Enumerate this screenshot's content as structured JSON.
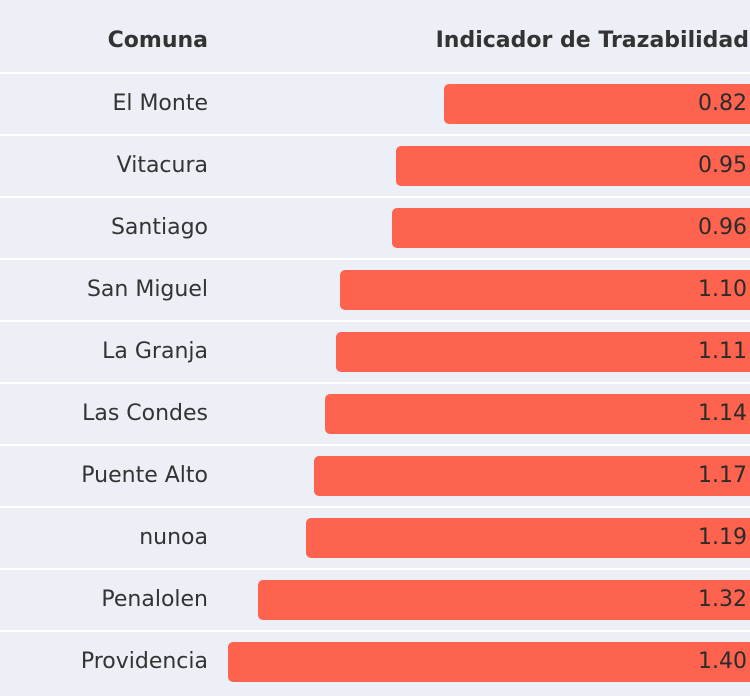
{
  "table": {
    "col_comuna": "Comuna",
    "col_indicator": "Indicador de Trazabilidad"
  },
  "colors": {
    "bar": "#fd634f",
    "background": "#eceff5",
    "row_divider": "#ffffff"
  },
  "chart_data": {
    "type": "bar",
    "orientation": "horizontal",
    "categories": [
      "El Monte",
      "Vitacura",
      "Santiago",
      "San Miguel",
      "La Granja",
      "Las Condes",
      "Puente Alto",
      "nunoa",
      "Penalolen",
      "Providencia"
    ],
    "values": [
      0.82,
      0.95,
      0.96,
      1.1,
      1.11,
      1.14,
      1.17,
      1.19,
      1.32,
      1.4
    ],
    "value_labels": [
      "0.82",
      "0.95",
      "0.96",
      "1.10",
      "1.11",
      "1.14",
      "1.17",
      "1.19",
      "1.32",
      "1.40"
    ],
    "xlabel": "Indicador de Trazabilidad",
    "ylabel": "Comuna",
    "xlim": [
      0,
      1.4
    ],
    "grid": false
  }
}
